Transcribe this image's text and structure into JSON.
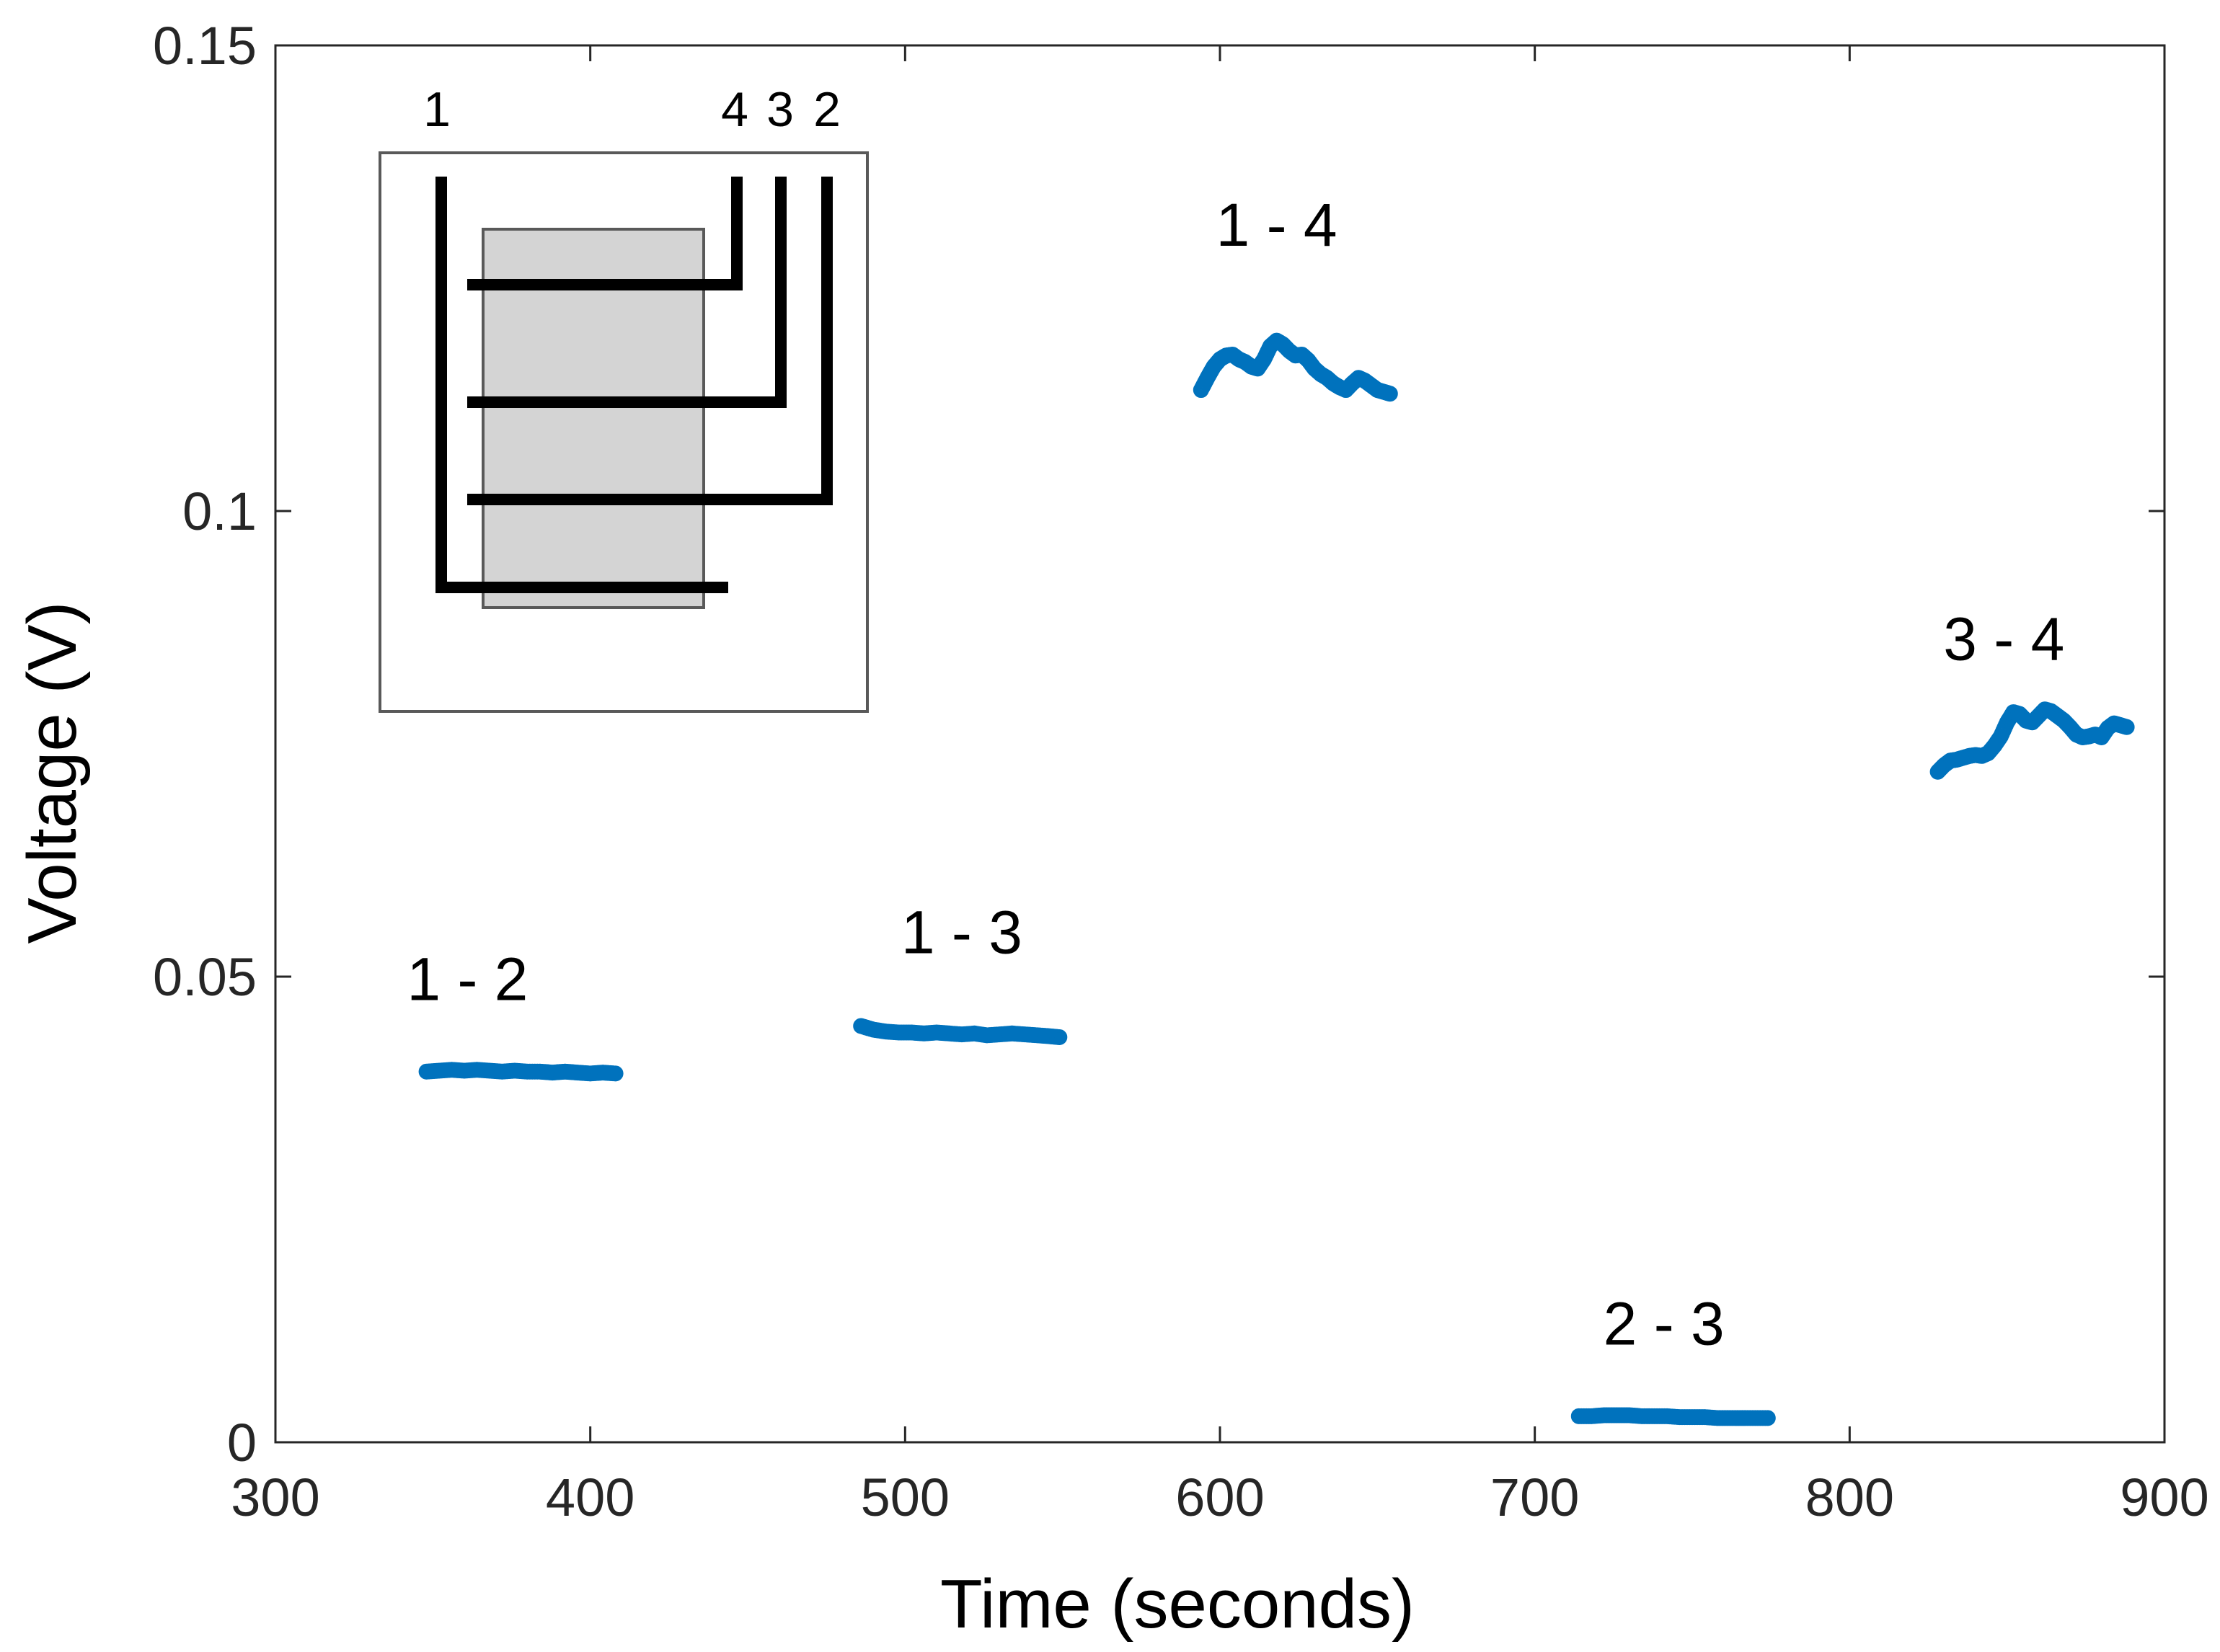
{
  "chart_data": {
    "type": "scatter",
    "xlabel": "Time (seconds)",
    "ylabel": "Voltage (V)",
    "xlim": [
      300,
      900
    ],
    "ylim": [
      0,
      0.15
    ],
    "x_ticks": [
      300,
      400,
      500,
      600,
      700,
      800,
      900
    ],
    "y_ticks": [
      0,
      0.05,
      0.1,
      0.15
    ],
    "y_tick_labels": [
      "0",
      "0.05",
      "0.1",
      "0.15"
    ],
    "grid": false,
    "marker": "open-circle",
    "series_color": "#0072BD",
    "segments": [
      {
        "label": "1 - 2",
        "label_at": [
          361,
          0.0475
        ],
        "points": [
          [
            348,
            0.0398
          ],
          [
            352,
            0.0399
          ],
          [
            356,
            0.04
          ],
          [
            360,
            0.0399
          ],
          [
            364,
            0.04
          ],
          [
            368,
            0.0399
          ],
          [
            372,
            0.0398
          ],
          [
            376,
            0.0399
          ],
          [
            380,
            0.0398
          ],
          [
            384,
            0.0398
          ],
          [
            388,
            0.0397
          ],
          [
            392,
            0.0398
          ],
          [
            396,
            0.0397
          ],
          [
            400,
            0.0396
          ],
          [
            404,
            0.0397
          ],
          [
            408,
            0.0396
          ]
        ]
      },
      {
        "label": "1 - 3",
        "label_at": [
          518,
          0.0525
        ],
        "points": [
          [
            486,
            0.0447
          ],
          [
            490,
            0.0443
          ],
          [
            494,
            0.0441
          ],
          [
            498,
            0.044
          ],
          [
            502,
            0.044
          ],
          [
            506,
            0.0439
          ],
          [
            510,
            0.044
          ],
          [
            514,
            0.0439
          ],
          [
            518,
            0.0438
          ],
          [
            522,
            0.0439
          ],
          [
            526,
            0.0437
          ],
          [
            530,
            0.0438
          ],
          [
            534,
            0.0439
          ],
          [
            538,
            0.0438
          ],
          [
            542,
            0.0437
          ],
          [
            546,
            0.0436
          ],
          [
            549,
            0.0435
          ]
        ]
      },
      {
        "label": "1 - 4",
        "label_at": [
          618,
          0.1285
        ],
        "points": [
          [
            594,
            0.113
          ],
          [
            596,
            0.1143
          ],
          [
            598,
            0.1155
          ],
          [
            600,
            0.1163
          ],
          [
            602,
            0.1167
          ],
          [
            604,
            0.1168
          ],
          [
            606,
            0.1163
          ],
          [
            608,
            0.116
          ],
          [
            610,
            0.1155
          ],
          [
            612,
            0.1153
          ],
          [
            614,
            0.1163
          ],
          [
            616,
            0.1177
          ],
          [
            618,
            0.1183
          ],
          [
            620,
            0.1179
          ],
          [
            622,
            0.1172
          ],
          [
            624,
            0.1167
          ],
          [
            626,
            0.1168
          ],
          [
            628,
            0.1162
          ],
          [
            630,
            0.1153
          ],
          [
            632,
            0.1147
          ],
          [
            634,
            0.1143
          ],
          [
            636,
            0.1137
          ],
          [
            638,
            0.1133
          ],
          [
            640,
            0.113
          ],
          [
            642,
            0.1137
          ],
          [
            644,
            0.1143
          ],
          [
            646,
            0.114
          ],
          [
            648,
            0.1135
          ],
          [
            650,
            0.113
          ],
          [
            652,
            0.1128
          ],
          [
            654,
            0.1126
          ]
        ]
      },
      {
        "label": "2 - 3",
        "label_at": [
          741,
          0.0105
        ],
        "points": [
          [
            714,
            0.0028
          ],
          [
            718,
            0.0028
          ],
          [
            722,
            0.0029
          ],
          [
            726,
            0.0029
          ],
          [
            730,
            0.0029
          ],
          [
            734,
            0.0028
          ],
          [
            738,
            0.0028
          ],
          [
            742,
            0.0028
          ],
          [
            746,
            0.0027
          ],
          [
            750,
            0.0027
          ],
          [
            754,
            0.0027
          ],
          [
            758,
            0.0026
          ],
          [
            762,
            0.0026
          ],
          [
            766,
            0.0026
          ],
          [
            770,
            0.0026
          ],
          [
            774,
            0.0026
          ]
        ]
      },
      {
        "label": "3 - 4",
        "label_at": [
          849,
          0.084
        ],
        "points": [
          [
            828,
            0.072
          ],
          [
            830,
            0.0727
          ],
          [
            832,
            0.0732
          ],
          [
            834,
            0.0733
          ],
          [
            836,
            0.0735
          ],
          [
            838,
            0.0737
          ],
          [
            840,
            0.0738
          ],
          [
            842,
            0.0737
          ],
          [
            844,
            0.074
          ],
          [
            846,
            0.0748
          ],
          [
            848,
            0.0758
          ],
          [
            850,
            0.0773
          ],
          [
            852,
            0.0784
          ],
          [
            854,
            0.0782
          ],
          [
            856,
            0.0775
          ],
          [
            858,
            0.0773
          ],
          [
            860,
            0.078
          ],
          [
            862,
            0.0787
          ],
          [
            864,
            0.0785
          ],
          [
            866,
            0.078
          ],
          [
            868,
            0.0775
          ],
          [
            870,
            0.0768
          ],
          [
            872,
            0.076
          ],
          [
            874,
            0.0757
          ],
          [
            876,
            0.0758
          ],
          [
            878,
            0.076
          ],
          [
            880,
            0.0757
          ],
          [
            882,
            0.0767
          ],
          [
            884,
            0.0772
          ],
          [
            886,
            0.077
          ],
          [
            888,
            0.0768
          ]
        ]
      }
    ]
  },
  "inset": {
    "labels": [
      "1",
      "4",
      "3",
      "2"
    ],
    "box_color": "#595959",
    "fill_color": "#d4d4d4",
    "line_color": "#000000"
  }
}
